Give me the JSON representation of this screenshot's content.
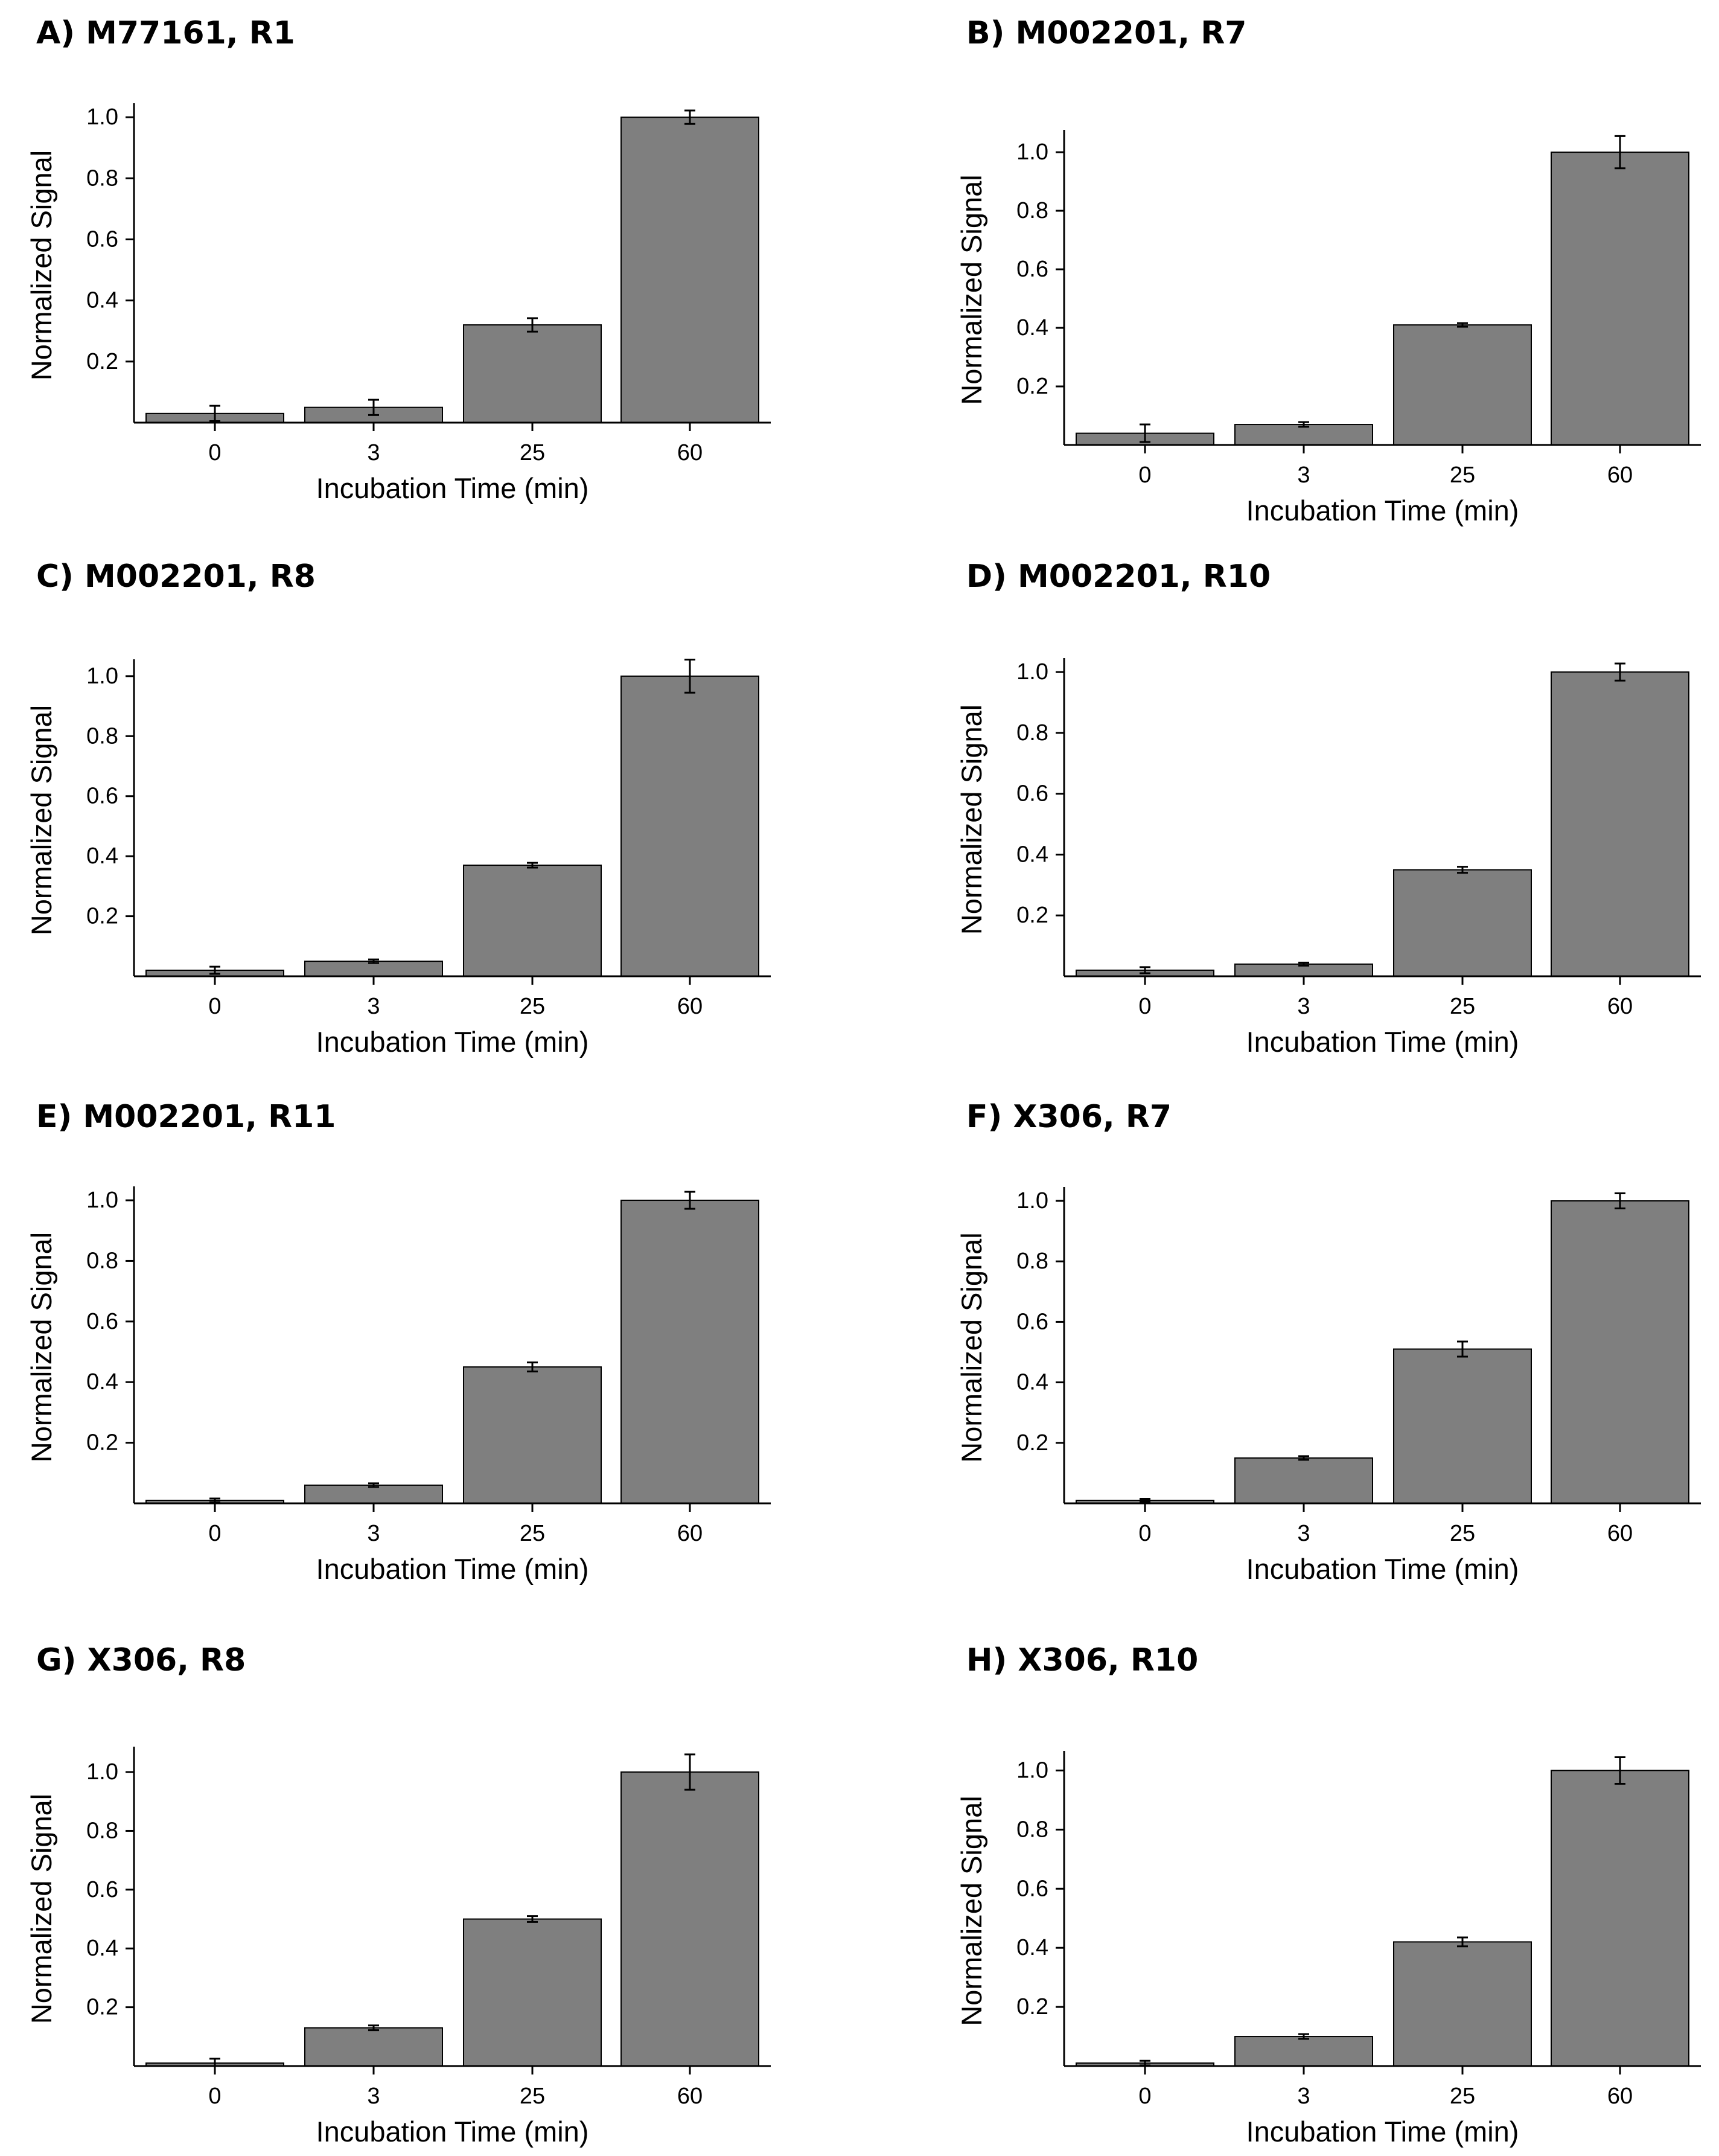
{
  "chart_data": [
    {
      "type": "bar",
      "title": "A) M77161, R1",
      "xlabel": "Incubation Time (min)",
      "ylabel": "Normalized Signal",
      "categories": [
        "0",
        "3",
        "25",
        "60"
      ],
      "values": [
        0.03,
        0.05,
        0.32,
        1.0
      ],
      "errors": [
        0.025,
        0.025,
        0.022,
        0.022
      ],
      "yticks": [
        "0.2",
        "0.4",
        "0.6",
        "0.8",
        "1.0"
      ],
      "ylim": [
        0,
        1.03
      ],
      "bar_color": "#7f7f7f"
    },
    {
      "type": "bar",
      "title": "B) M002201, R7",
      "xlabel": "Incubation Time (min)",
      "ylabel": "Normalized Signal",
      "categories": [
        "0",
        "3",
        "25",
        "60"
      ],
      "values": [
        0.04,
        0.07,
        0.41,
        1.0
      ],
      "errors": [
        0.03,
        0.008,
        0.006,
        0.055
      ],
      "yticks": [
        "0.2",
        "0.4",
        "0.6",
        "0.8",
        "1.0"
      ],
      "ylim": [
        0,
        1.06
      ],
      "bar_color": "#7f7f7f"
    },
    {
      "type": "bar",
      "title": "C) M002201, R8",
      "xlabel": "Incubation Time (min)",
      "ylabel": "Normalized Signal",
      "categories": [
        "0",
        "3",
        "25",
        "60"
      ],
      "values": [
        0.02,
        0.05,
        0.37,
        1.0
      ],
      "errors": [
        0.012,
        0.006,
        0.008,
        0.055
      ],
      "yticks": [
        "0.2",
        "0.4",
        "0.6",
        "0.8",
        "1.0"
      ],
      "ylim": [
        0,
        1.04
      ],
      "bar_color": "#7f7f7f"
    },
    {
      "type": "bar",
      "title": "D) M002201, R10",
      "xlabel": "Incubation Time (min)",
      "ylabel": "Normalized Signal",
      "categories": [
        "0",
        "3",
        "25",
        "60"
      ],
      "values": [
        0.02,
        0.04,
        0.35,
        1.0
      ],
      "errors": [
        0.01,
        0.005,
        0.01,
        0.028
      ],
      "yticks": [
        "0.2",
        "0.4",
        "0.6",
        "0.8",
        "1.0"
      ],
      "ylim": [
        0,
        1.03
      ],
      "bar_color": "#7f7f7f"
    },
    {
      "type": "bar",
      "title": "E) M002201, R11",
      "xlabel": "Incubation Time (min)",
      "ylabel": "Normalized Signal",
      "categories": [
        "0",
        "3",
        "25",
        "60"
      ],
      "values": [
        0.01,
        0.06,
        0.45,
        1.0
      ],
      "errors": [
        0.006,
        0.006,
        0.015,
        0.028
      ],
      "yticks": [
        "0.2",
        "0.4",
        "0.6",
        "0.8",
        "1.0"
      ],
      "ylim": [
        0,
        1.03
      ],
      "bar_color": "#7f7f7f"
    },
    {
      "type": "bar",
      "title": "F) X306, R7",
      "xlabel": "Incubation Time (min)",
      "ylabel": "Normalized Signal",
      "categories": [
        "0",
        "3",
        "25",
        "60"
      ],
      "values": [
        0.01,
        0.15,
        0.51,
        1.0
      ],
      "errors": [
        0.005,
        0.006,
        0.025,
        0.025
      ],
      "yticks": [
        "0.2",
        "0.4",
        "0.6",
        "0.8",
        "1.0"
      ],
      "ylim": [
        0,
        1.03
      ],
      "bar_color": "#7f7f7f"
    },
    {
      "type": "bar",
      "title": "G) X306, R8",
      "xlabel": "Incubation Time (min)",
      "ylabel": "Normalized Signal",
      "categories": [
        "0",
        "3",
        "25",
        "60"
      ],
      "values": [
        0.01,
        0.13,
        0.5,
        1.0
      ],
      "errors": [
        0.015,
        0.008,
        0.01,
        0.06
      ],
      "yticks": [
        "0.2",
        "0.4",
        "0.6",
        "0.8",
        "1.0"
      ],
      "ylim": [
        0,
        1.07
      ],
      "bar_color": "#7f7f7f"
    },
    {
      "type": "bar",
      "title": "H) X306, R10",
      "xlabel": "Incubation Time (min)",
      "ylabel": "Normalized Signal",
      "categories": [
        "0",
        "3",
        "25",
        "60"
      ],
      "values": [
        0.01,
        0.1,
        0.42,
        1.0
      ],
      "errors": [
        0.008,
        0.008,
        0.015,
        0.045
      ],
      "yticks": [
        "0.2",
        "0.4",
        "0.6",
        "0.8",
        "1.0"
      ],
      "ylim": [
        0,
        1.05
      ],
      "bar_color": "#7f7f7f"
    }
  ]
}
